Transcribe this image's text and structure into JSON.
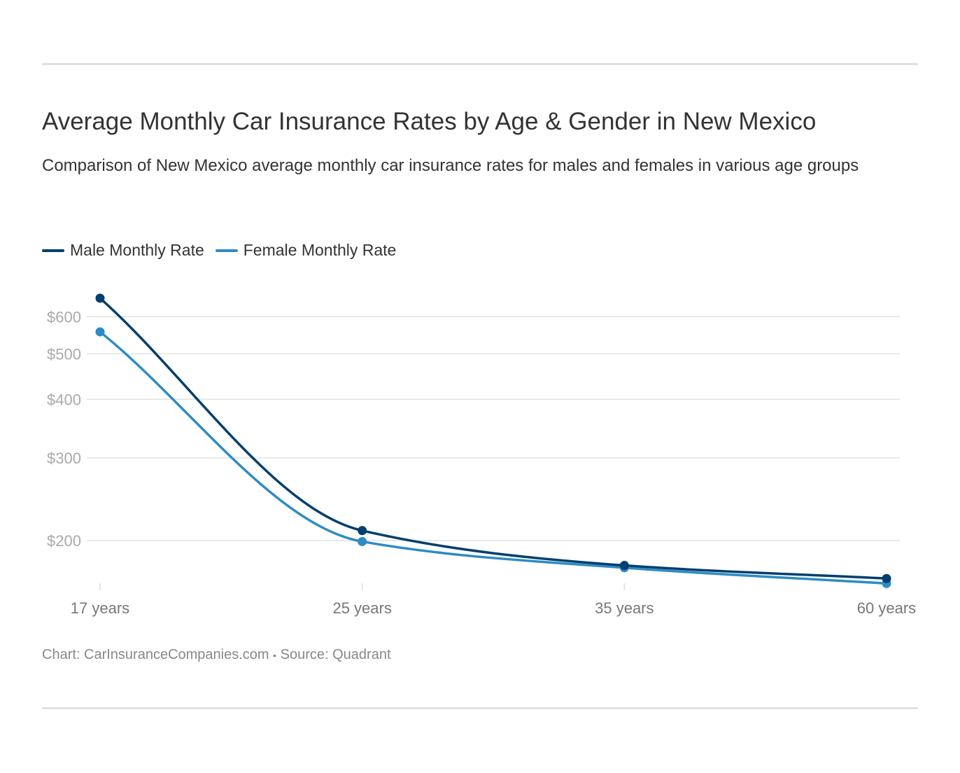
{
  "chart_data": {
    "type": "line",
    "title": "Average Monthly Car Insurance Rates by Age & Gender in New Mexico",
    "subtitle": "Comparison of New Mexico average monthly car insurance rates for males and females in various age groups",
    "categories": [
      "17 years",
      "25 years",
      "35 years",
      "60 years"
    ],
    "y_scale": "log",
    "y_ticks": [
      200,
      300,
      400,
      500,
      600
    ],
    "y_tick_labels": [
      "$200",
      "$300",
      "$400",
      "$500",
      "$600"
    ],
    "grid": true,
    "legend_position": "top-left",
    "series": [
      {
        "name": "Male Monthly Rate",
        "color": "#003f6e",
        "values": [
          657,
          210,
          177,
          166
        ]
      },
      {
        "name": "Female Monthly Rate",
        "color": "#2e8bc4",
        "values": [
          557,
          199,
          175,
          162
        ]
      }
    ]
  },
  "footer": {
    "chart_credit": "Chart: CarInsuranceCompanies.com",
    "separator": "•",
    "source": "Source: Quadrant"
  }
}
